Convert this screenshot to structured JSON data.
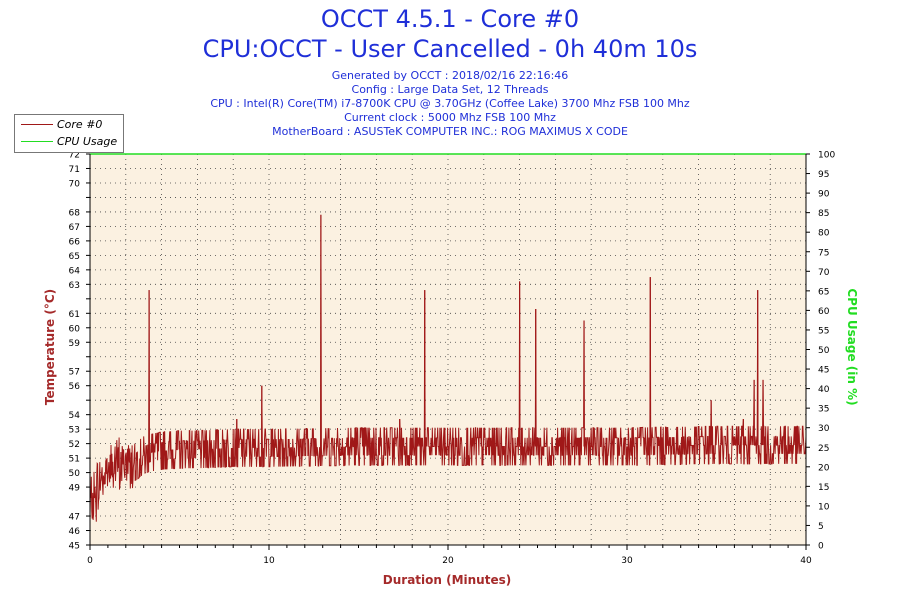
{
  "header": {
    "title": "OCCT 4.5.1 - Core #0",
    "subtitle": "CPU:OCCT - User Cancelled - 0h 40m 10s",
    "info": [
      "Generated by OCCT : 2018/02/16 22:16:46",
      "Config : Large Data Set, 12 Threads",
      "CPU : Intel(R) Core(TM) i7-8700K CPU @ 3.70GHz (Coffee Lake) 3700 Mhz FSB 100 Mhz",
      "Current clock : 5000 Mhz FSB 100 Mhz",
      "MotherBoard : ASUSTeK COMPUTER INC.: ROG MAXIMUS X CODE"
    ]
  },
  "colors": {
    "temperature": "#a01818",
    "cpu_usage": "#22dd22",
    "plot_bg": "#fbf1e1",
    "title": "#1f2fd8",
    "axis_title": "#a52a2a"
  },
  "chart_data": {
    "type": "line",
    "xlabel": "Duration (Minutes)",
    "ylabel": "Temperature (°C)",
    "y2label": "CPU Usage (in %)",
    "xlim": [
      0,
      40
    ],
    "ylim": [
      45,
      72
    ],
    "y2lim": [
      0,
      100
    ],
    "x_ticks": [
      0,
      10,
      20,
      30,
      40
    ],
    "y_ticks": [
      45,
      46,
      47,
      49,
      50,
      51,
      52,
      53,
      54,
      56,
      57,
      59,
      60,
      61,
      63,
      64,
      65,
      66,
      67,
      68,
      70,
      71,
      72
    ],
    "y2_ticks": [
      0,
      5,
      10,
      15,
      20,
      25,
      30,
      35,
      40,
      45,
      50,
      55,
      60,
      65,
      70,
      75,
      80,
      85,
      90,
      95,
      100
    ],
    "grid": true,
    "legend_position": "top-left",
    "series": [
      {
        "name": "Core #0",
        "axis": "left",
        "baseline": {
          "x": [
            0,
            0.3,
            0.6,
            1.0,
            1.5,
            2.0,
            2.5,
            3.0,
            3.5,
            4.0,
            5.0,
            6.0,
            8.0,
            10.0,
            15.0,
            20.0,
            25.0,
            30.0,
            35.0,
            40.0
          ],
          "y": [
            47.5,
            48.5,
            49.5,
            50.2,
            50.5,
            50.6,
            50.7,
            51.2,
            51.4,
            51.5,
            51.6,
            51.6,
            51.7,
            51.7,
            51.8,
            51.8,
            51.8,
            51.8,
            51.9,
            51.9
          ]
        },
        "spikes": {
          "x": [
            3.3,
            8.2,
            9.6,
            12.9,
            17.3,
            18.7,
            24.0,
            24.9,
            27.6,
            31.3,
            34.7,
            36.5,
            37.1,
            37.3,
            37.6
          ],
          "y": [
            62.6,
            53.7,
            56.0,
            67.8,
            53.7,
            62.6,
            63.2,
            61.3,
            60.5,
            63.5,
            55.0,
            53.7,
            56.4,
            62.6,
            56.4
          ]
        }
      },
      {
        "name": "CPU Usage",
        "axis": "right",
        "x": [
          0,
          40
        ],
        "y": [
          100,
          100
        ]
      }
    ]
  }
}
